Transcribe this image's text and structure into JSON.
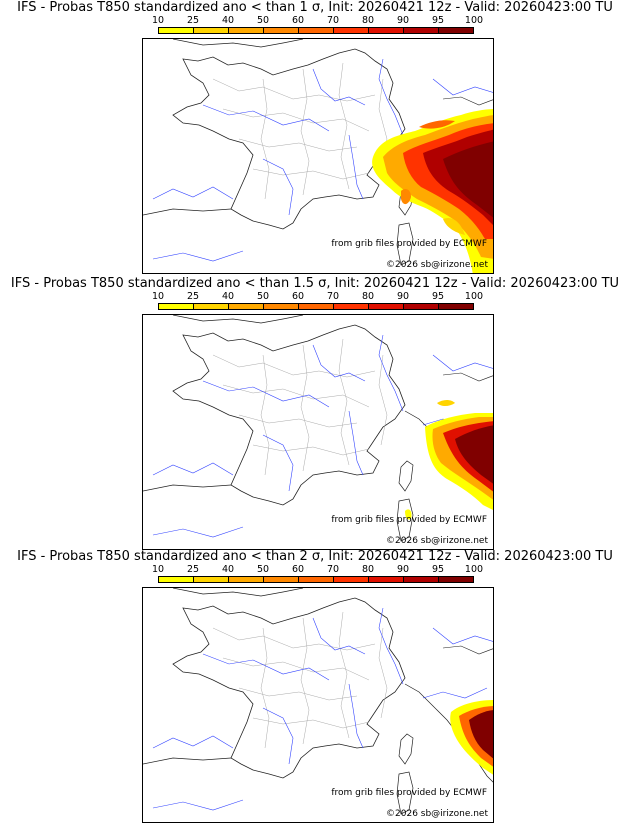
{
  "colorbar": {
    "ticks": [
      "10",
      "25",
      "40",
      "50",
      "60",
      "70",
      "80",
      "90",
      "95",
      "100"
    ],
    "colors": [
      "#ffff00",
      "#ffd400",
      "#ffaa00",
      "#ff8800",
      "#ff6600",
      "#ff3300",
      "#e01000",
      "#b00000",
      "#800000"
    ]
  },
  "credits": {
    "source": "from grib files provided by ECMWF",
    "copyright": "©2026 sb@irizone.net"
  },
  "panels": [
    {
      "title": "IFS - Probas T850  standardized ano < than 1 σ, Init: 20260421 12z - Valid: 20260423:00 TU",
      "sigma": "1",
      "coverage_level": "high"
    },
    {
      "title": "IFS - Probas T850  standardized ano < than 1.5 σ, Init: 20260421 12z - Valid: 20260423:00 TU",
      "sigma": "1.5",
      "coverage_level": "medium"
    },
    {
      "title": "IFS - Probas T850  standardized ano < than 2 σ, Init: 20260421 12z - Valid: 20260423:00 TU",
      "sigma": "2",
      "coverage_level": "low"
    }
  ]
}
